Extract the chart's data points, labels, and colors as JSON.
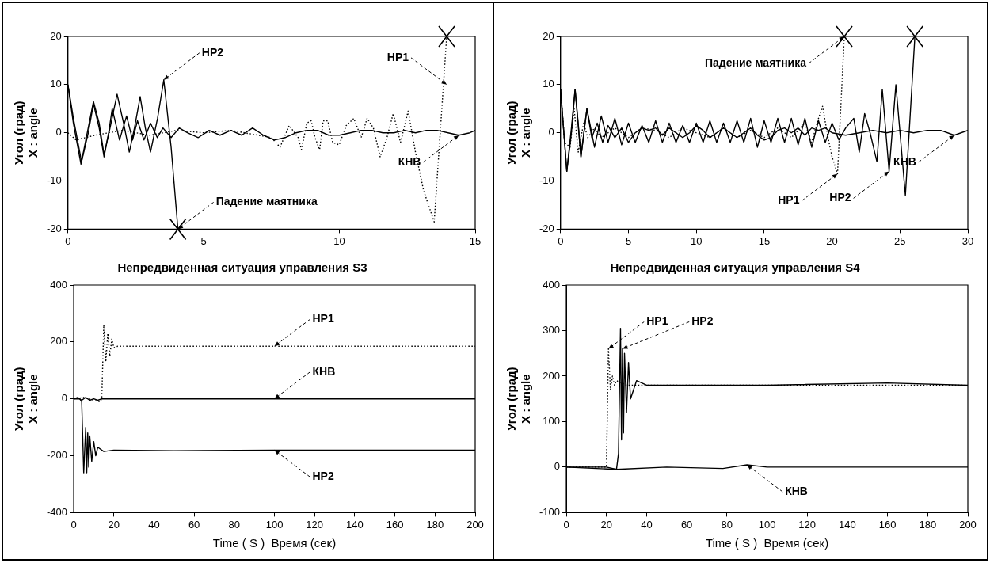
{
  "chart_data": [
    {
      "type": "line",
      "ylabel": "Угол (град)\nX : angle",
      "xlim": [
        0,
        15
      ],
      "ylim": [
        -20,
        20
      ],
      "xticks": [
        0,
        5,
        10,
        15
      ],
      "yticks": [
        -20,
        -10,
        0,
        10,
        20
      ],
      "series": [
        {
          "color": "#000000",
          "line_style": "dotted",
          "x": [
            0,
            0.3,
            1,
            2,
            3,
            4,
            5,
            6,
            7,
            7.5,
            7.81,
            8.15,
            8.48,
            8.6,
            8.8,
            8.96,
            9.1,
            9.27,
            9.4,
            9.57,
            9.75,
            9.99,
            10.25,
            10.53,
            10.8,
            11.02,
            11.25,
            11.5,
            11.75,
            11.98,
            12.25,
            12.53,
            12.8,
            13.1,
            13.49,
            13.95
          ],
          "values": [
            0,
            -1.5,
            -0.5,
            0.5,
            -0.5,
            0.5,
            0,
            0.5,
            -0.5,
            -1,
            -3,
            1.5,
            -1,
            -3.5,
            2,
            2.5,
            -1,
            -3.5,
            2.5,
            2.5,
            -2,
            -2.5,
            1.5,
            3,
            -1,
            3,
            1,
            -5,
            -1,
            4,
            -2,
            4.5,
            -4,
            -12,
            -18.5,
            20
          ]
        },
        {
          "color": "#000000",
          "line_style": "solid",
          "x": [
            0,
            0.2,
            0.5,
            0.94,
            1.15,
            1.33,
            1.55,
            1.81,
            2.05,
            2.26,
            2.45,
            2.66,
            2.85,
            3.04,
            3.3,
            3.53,
            3.8,
            4.05
          ],
          "values": [
            10,
            3,
            -6,
            6.5,
            2,
            -4.5,
            1,
            8,
            2,
            -4,
            1,
            7.5,
            1,
            -4,
            3,
            11,
            -3,
            -20
          ]
        },
        {
          "color": "#000000",
          "line_style": "solid",
          "x": [
            0,
            0.2,
            0.48,
            0.75,
            0.94,
            1.15,
            1.33,
            1.5,
            1.63,
            1.9,
            2.16,
            2.38,
            2.56,
            2.8,
            3.04,
            3.29,
            3.5,
            3.8,
            4.1,
            4.4,
            4.8,
            5.2,
            5.6,
            6,
            6.4,
            6.8,
            7.2,
            7.6,
            8,
            8.4,
            8.8,
            9.2,
            9.6,
            10,
            10.4,
            10.8,
            11.2,
            11.6,
            12,
            12.4,
            12.8,
            13.2,
            13.6,
            14,
            14.4,
            14.8,
            15
          ],
          "values": [
            10,
            2,
            -6.5,
            0,
            6,
            1,
            -5,
            0,
            5,
            -1.5,
            3.5,
            -1.5,
            2.5,
            -1.5,
            2,
            -1,
            1,
            -1,
            1,
            0,
            -1,
            0.5,
            -0.5,
            0.5,
            -0.5,
            1,
            -0.5,
            -1.5,
            -1,
            0,
            0.5,
            0.5,
            -0.5,
            -0.5,
            0,
            0.5,
            0.5,
            0,
            0,
            0.5,
            0,
            0.5,
            0.5,
            0,
            -0.5,
            0,
            0.5
          ]
        }
      ],
      "annotations": [
        {
          "text": "НР2",
          "x": 3.53,
          "y": 11
        },
        {
          "text": "НР1",
          "x": 13.95,
          "y": 10
        },
        {
          "text": "Падение маятника",
          "x": 4.05,
          "y": -20
        },
        {
          "text": "КНВ",
          "x": 14.4,
          "y": -0.5
        }
      ]
    },
    {
      "type": "line",
      "ylabel": "Угол (град)\nX : angle",
      "xlim": [
        0,
        30
      ],
      "ylim": [
        -20,
        20
      ],
      "xticks": [
        0,
        5,
        10,
        15,
        20,
        25,
        30
      ],
      "yticks": [
        -20,
        -10,
        0,
        10,
        20
      ],
      "series": [
        {
          "color": "#000000",
          "line_style": "dotted",
          "x": [
            0,
            0.3,
            0.7,
            1.0,
            1.3,
            1.7,
            2,
            2.5,
            3,
            4,
            5,
            6,
            7,
            8,
            9,
            10,
            11,
            12,
            13,
            14,
            15,
            16,
            17,
            18,
            18.5,
            19,
            19.3,
            19.7,
            20,
            20.4,
            20.9
          ],
          "values": [
            9,
            -2,
            -3,
            5,
            -4,
            2,
            -1,
            1,
            -1,
            1,
            -1,
            1,
            0.5,
            -1,
            1,
            0,
            -1,
            1,
            -1,
            0.5,
            -1,
            1,
            -1,
            2,
            -2,
            3,
            5.5,
            -1,
            -5,
            -8.5,
            20
          ]
        },
        {
          "color": "#000000",
          "line_style": "solid",
          "x": [
            0,
            0.46,
            0.8,
            1.07,
            1.5,
            1.94,
            2.5,
            3,
            3.5,
            4,
            4.5,
            5,
            5.5,
            6,
            6.5,
            7,
            7.5,
            8,
            8.5,
            9,
            9.5,
            10,
            10.5,
            11,
            11.5,
            12,
            12.5,
            13,
            13.5,
            14,
            14.5,
            15,
            15.5,
            16,
            16.5,
            17,
            17.5,
            18,
            18.5,
            19,
            19.5,
            20,
            20.5,
            21,
            21.6,
            22,
            22.4,
            22.8,
            23.3,
            23.7,
            24.2,
            24.7,
            25.4,
            26.1
          ],
          "values": [
            9,
            -8,
            1,
            9,
            -5,
            5,
            -3,
            3.5,
            -2,
            3,
            -2.5,
            2,
            -2,
            1.5,
            -2,
            2.5,
            -2,
            2,
            -2,
            1.5,
            -2,
            2,
            -2,
            2.5,
            -2,
            2,
            -2,
            2.5,
            -2,
            3,
            -3,
            2.5,
            -2,
            3,
            -2,
            3,
            -2.5,
            3,
            -3,
            2.5,
            -2,
            2,
            -1.5,
            1,
            3,
            -4,
            4,
            0,
            -6,
            9,
            -8,
            10,
            -13,
            20
          ]
        },
        {
          "color": "#000000",
          "line_style": "solid",
          "x": [
            0,
            0.46,
            0.8,
            1.07,
            1.3,
            1.5,
            1.94,
            2.3,
            2.7,
            3.1,
            3.5,
            4,
            4.5,
            5,
            5.5,
            6,
            6.5,
            7,
            7.5,
            8,
            8.5,
            9,
            9.5,
            10,
            10.5,
            11,
            11.5,
            12,
            12.5,
            13,
            13.5,
            14,
            14.5,
            15,
            15.5,
            16,
            16.5,
            17,
            17.5,
            18,
            18.5,
            19,
            19.5,
            20,
            21,
            22,
            23,
            24,
            25,
            26,
            27,
            28,
            29,
            30
          ],
          "values": [
            9,
            -8,
            0,
            9,
            2,
            -5,
            5,
            -1,
            2,
            -2,
            1.5,
            -1,
            1,
            -2,
            0,
            1,
            0.5,
            1,
            -0.5,
            1,
            0,
            -1,
            0,
            1.5,
            0.5,
            -1,
            0,
            1,
            0,
            -1,
            0,
            1,
            -0.5,
            -1.5,
            -1,
            0.5,
            1,
            0,
            1,
            -0.5,
            1,
            0.5,
            1,
            0,
            -0.5,
            0,
            0.5,
            0,
            0.5,
            0,
            0.5,
            0.5,
            -0.5,
            0.5
          ]
        }
      ],
      "annotations": [
        {
          "text": "Падение маятника",
          "x": 20.9,
          "y": 20
        },
        {
          "text": "НР1",
          "x": 20.4,
          "y": -8.5
        },
        {
          "text": "НР2",
          "x": 24.2,
          "y": -8
        },
        {
          "text": "КНВ",
          "x": 29,
          "y": -0.5
        }
      ]
    },
    {
      "type": "line",
      "title": "Непредвиденная ситуация управления S3",
      "xlabel": "Time ( S )  Время (сек)",
      "ylabel": "Угол (град)\nX : angle",
      "xlim": [
        0,
        200
      ],
      "ylim": [
        -400,
        400
      ],
      "xticks": [
        0,
        20,
        40,
        60,
        80,
        100,
        120,
        140,
        160,
        180,
        200
      ],
      "yticks": [
        -400,
        -200,
        0,
        200,
        400
      ],
      "series": [
        {
          "color": "#000000",
          "line_style": "dotted",
          "x": [
            0,
            5,
            10,
            13,
            14,
            15,
            16,
            17,
            18,
            19,
            20,
            22,
            25,
            50,
            100,
            150,
            200
          ],
          "values": [
            0,
            5,
            -5,
            -10,
            0,
            260,
            130,
            230,
            150,
            210,
            180,
            185,
            185,
            185,
            185,
            185,
            185
          ]
        },
        {
          "color": "#000000",
          "line_style": "solid",
          "x": [
            0,
            3,
            4,
            5,
            6,
            6.5,
            7,
            7.5,
            8,
            9,
            10,
            11,
            12,
            15,
            20,
            50,
            100,
            150,
            200
          ],
          "values": [
            0,
            0,
            -10,
            -260,
            -100,
            -260,
            -120,
            -240,
            -130,
            -220,
            -150,
            -200,
            -170,
            -185,
            -180,
            -182,
            -180,
            -180,
            -180
          ]
        },
        {
          "color": "#000000",
          "line_style": "solid",
          "x": [
            0,
            2,
            4,
            6,
            8,
            10,
            12,
            14,
            100,
            200
          ],
          "values": [
            0,
            5,
            -5,
            5,
            -5,
            0,
            -5,
            0,
            0,
            0
          ]
        }
      ],
      "annotations": [
        {
          "text": "НР1",
          "x": 100,
          "y": 185
        },
        {
          "text": "КНВ",
          "x": 100,
          "y": 0
        },
        {
          "text": "НР2",
          "x": 100,
          "y": -180
        }
      ]
    },
    {
      "type": "line",
      "title": "Непредвиденная ситуация управления S4",
      "xlabel": "Time ( S )  Время (сек)",
      "ylabel": "Угол (град)\nX : angle",
      "xlim": [
        0,
        200
      ],
      "ylim": [
        -100,
        400
      ],
      "xticks": [
        0,
        20,
        40,
        60,
        80,
        100,
        120,
        140,
        160,
        180,
        200
      ],
      "yticks": [
        -100,
        0,
        100,
        200,
        300,
        400
      ],
      "series": [
        {
          "color": "#000000",
          "line_style": "dotted",
          "x": [
            0,
            10,
            20,
            21,
            22,
            23,
            24,
            25,
            30,
            50,
            100,
            150,
            200
          ],
          "values": [
            0,
            0,
            0,
            260,
            170,
            200,
            180,
            190,
            180,
            180,
            180,
            180,
            180
          ]
        },
        {
          "color": "#000000",
          "line_style": "solid",
          "x": [
            0,
            10,
            20,
            25,
            26,
            27,
            27.5,
            28,
            28.5,
            29,
            30,
            31,
            32,
            35,
            40,
            60,
            100,
            160,
            200
          ],
          "values": [
            0,
            0,
            0,
            -5,
            30,
            305,
            60,
            260,
            75,
            250,
            120,
            230,
            150,
            190,
            180,
            180,
            180,
            185,
            180
          ]
        },
        {
          "color": "#000000",
          "line_style": "solid",
          "x": [
            0,
            25,
            50,
            78,
            90,
            100,
            150,
            200
          ],
          "values": [
            0,
            -5,
            0,
            -3,
            5,
            0,
            0,
            0
          ]
        }
      ],
      "annotations": [
        {
          "text": "НР1",
          "x": 21,
          "y": 260
        },
        {
          "text": "НР2",
          "x": 28,
          "y": 260
        },
        {
          "text": "КНВ",
          "x": 90,
          "y": 5
        }
      ]
    }
  ]
}
